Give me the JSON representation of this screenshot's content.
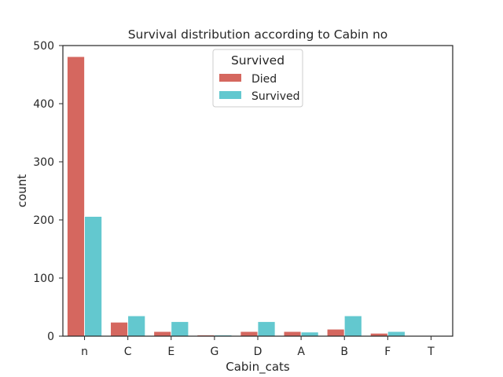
{
  "chart_data": {
    "type": "bar",
    "title": "Survival distribution according to Cabin no",
    "xlabel": "Cabin_cats",
    "ylabel": "count",
    "categories": [
      "n",
      "C",
      "E",
      "G",
      "D",
      "A",
      "B",
      "F",
      "T"
    ],
    "series": [
      {
        "name": "Died",
        "color": "#d5675f",
        "values": [
          481,
          24,
          8,
          2,
          8,
          8,
          12,
          5,
          1
        ]
      },
      {
        "name": "Survived",
        "color": "#63c8cf",
        "values": [
          206,
          35,
          25,
          2,
          25,
          7,
          35,
          8,
          0
        ]
      }
    ],
    "ylim": [
      0,
      500
    ],
    "yticks": [
      0,
      100,
      200,
      300,
      400,
      500
    ],
    "legend": {
      "title": "Survived",
      "placement": "top-center"
    },
    "grid": false
  }
}
